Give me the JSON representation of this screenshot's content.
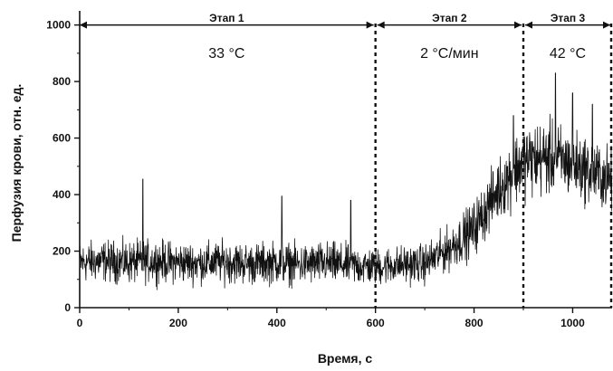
{
  "chart_data": {
    "type": "line",
    "xlabel": "Время, с",
    "ylabel": "Перфузия крови, отн. ед.",
    "xlim": [
      0,
      1080
    ],
    "ylim": [
      0,
      1050
    ],
    "xticks": [
      0,
      200,
      400,
      600,
      800,
      1000
    ],
    "yticks": [
      0,
      200,
      400,
      600,
      800,
      1000
    ],
    "grid": false,
    "stages": [
      {
        "name": "Этап 1",
        "condition": "33 °C",
        "start": 0,
        "end": 600
      },
      {
        "name": "Этап 2",
        "condition": "2 °C/мин",
        "start": 600,
        "end": 900
      },
      {
        "name": "Этап 3",
        "condition": "42 °C",
        "start": 900,
        "end": 1080
      }
    ],
    "stage_boundaries": [
      600,
      900,
      1080
    ],
    "series": [
      {
        "color": "#111111",
        "x": [
          0,
          50,
          100,
          150,
          200,
          250,
          300,
          350,
          400,
          450,
          500,
          550,
          600,
          650,
          700,
          750,
          800,
          850,
          900,
          950,
          1000,
          1050,
          1080
        ],
        "y": [
          160,
          165,
          160,
          165,
          160,
          158,
          162,
          155,
          160,
          152,
          158,
          150,
          145,
          152,
          155,
          210,
          280,
          420,
          520,
          530,
          510,
          470,
          450
        ],
        "noise": [
          60,
          60,
          62,
          62,
          60,
          60,
          62,
          60,
          62,
          60,
          62,
          60,
          55,
          55,
          58,
          65,
          80,
          90,
          110,
          110,
          100,
          95,
          95
        ],
        "spikes": [
          [
            128,
            455
          ],
          [
            410,
            395
          ],
          [
            550,
            380
          ],
          [
            880,
            680
          ],
          [
            965,
            830
          ],
          [
            1000,
            760
          ],
          [
            1040,
            720
          ]
        ]
      }
    ]
  }
}
